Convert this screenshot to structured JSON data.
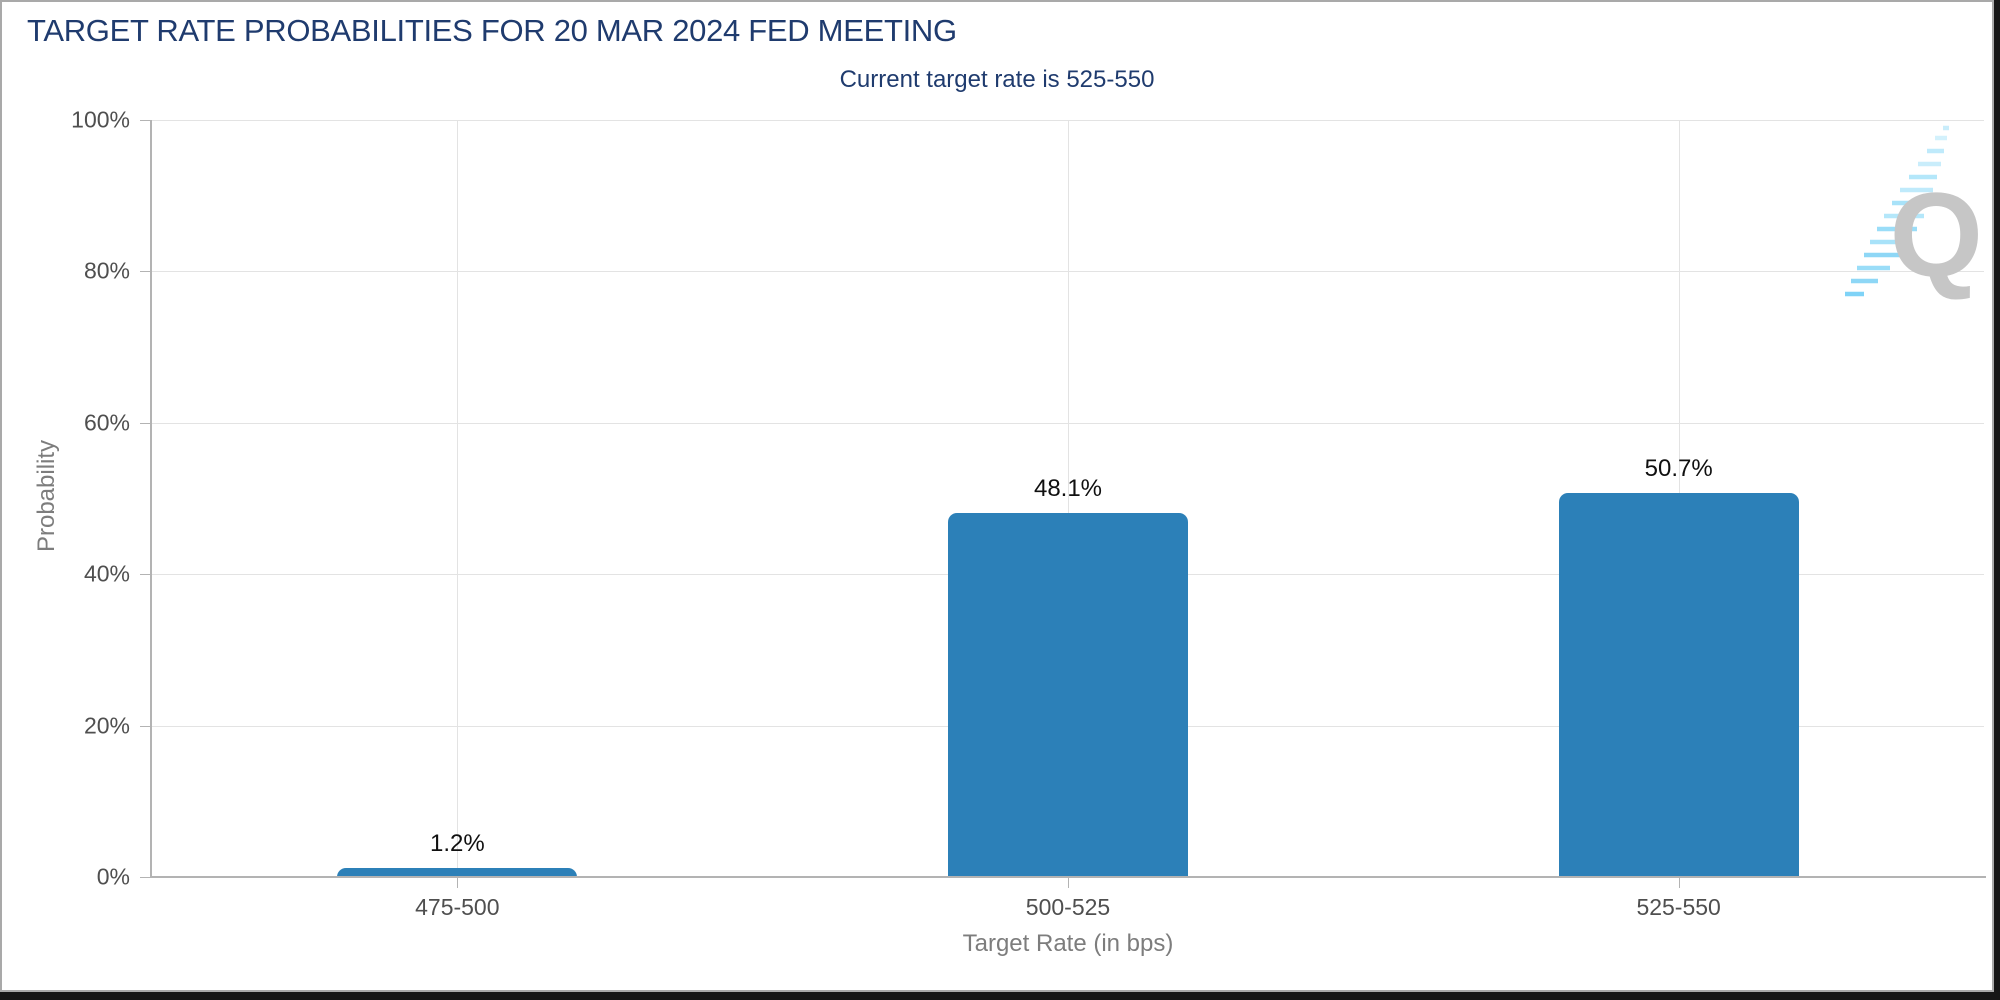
{
  "chart_data": {
    "type": "bar",
    "title": "TARGET RATE PROBABILITIES FOR 20 MAR 2024 FED MEETING",
    "subtitle": "Current target rate is 525-550",
    "categories": [
      "475-500",
      "500-525",
      "525-550"
    ],
    "values": [
      1.2,
      48.1,
      50.7
    ],
    "value_labels": [
      "1.2%",
      "48.1%",
      "50.7%"
    ],
    "xlabel": "Target Rate (in bps)",
    "ylabel": "Probability",
    "ylim": [
      0,
      100
    ],
    "ytick_labels": [
      "0%",
      "20%",
      "40%",
      "60%",
      "80%",
      "100%"
    ],
    "grid": true,
    "legend": false,
    "bar_color": "#2c80b8"
  },
  "watermark": {
    "letter": "Q"
  },
  "colors": {
    "navy": "#1f3b6e",
    "bar": "#2c80b8",
    "grid": "#e3e3e3",
    "axis_line": "#b3b3b3",
    "tick_text": "#4f4f4f",
    "axis_title_text": "#7d7d7d",
    "value_label_text": "#101010",
    "logo_gray": "#c6c6c6",
    "logo_blue": "#8ed7f6"
  }
}
